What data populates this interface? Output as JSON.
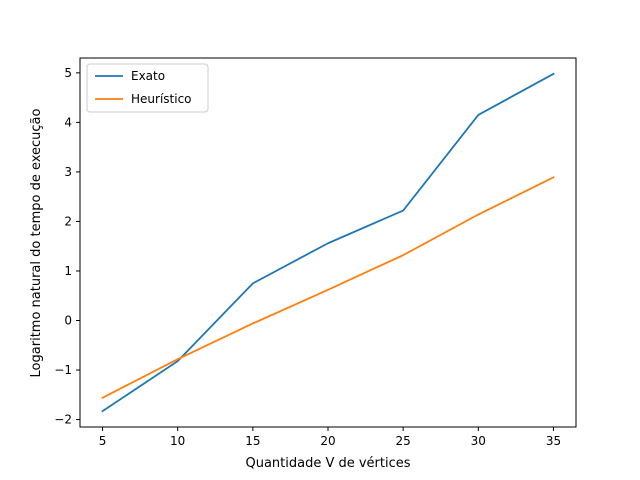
{
  "chart_data": {
    "type": "line",
    "xlabel": "Quantidade V de vértices",
    "ylabel": "Logaritmo natural do tempo de execução",
    "xlim": [
      3.5,
      36.5
    ],
    "ylim": [
      -2.15,
      5.3
    ],
    "xticks": [
      5,
      10,
      15,
      20,
      25,
      30,
      35
    ],
    "yticks": [
      -2,
      -1,
      0,
      1,
      2,
      3,
      4,
      5
    ],
    "ytick_labels": [
      "−2",
      "−1",
      "0",
      "1",
      "2",
      "3",
      "4",
      "5"
    ],
    "x": [
      5,
      10,
      15,
      20,
      25,
      30,
      35
    ],
    "legend_position": "top-left",
    "grid": false,
    "series": [
      {
        "name": "Exato",
        "color": "#1f77b4",
        "values": [
          -1.83,
          -0.82,
          0.75,
          1.56,
          2.22,
          4.15,
          4.98
        ]
      },
      {
        "name": "Heurístico",
        "color": "#ff7f0e",
        "values": [
          -1.56,
          -0.78,
          -0.06,
          0.62,
          1.32,
          2.14,
          2.89
        ]
      }
    ]
  }
}
